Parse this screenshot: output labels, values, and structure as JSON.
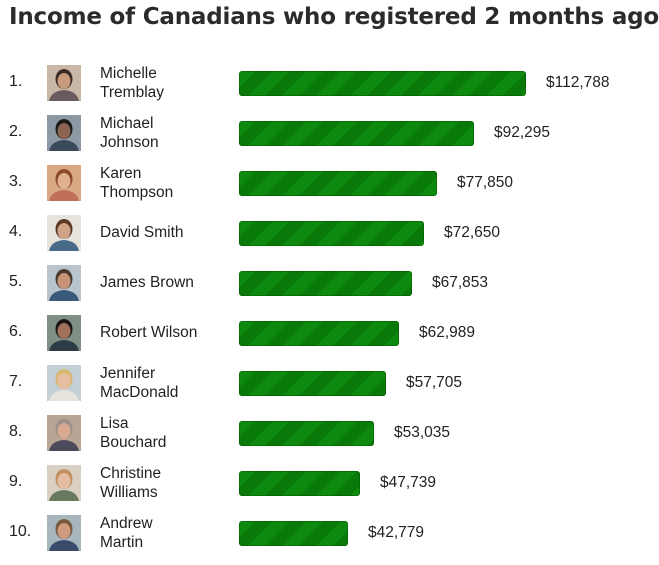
{
  "chart_data": {
    "type": "bar",
    "orientation": "horizontal",
    "title": "Income of Canadians who registered 2 months ago",
    "categories": [
      "Michelle Tremblay",
      "Michael Johnson",
      "Karen Thompson",
      "David Smith",
      "James Brown",
      "Robert Wilson",
      "Jennifer MacDonald",
      "Lisa Bouchard",
      "Christine Williams",
      "Andrew Martin"
    ],
    "values": [
      112788,
      92295,
      77850,
      72650,
      67853,
      62989,
      57705,
      53035,
      47739,
      42779
    ],
    "color": "#0d8a0d",
    "grid": false,
    "rows": [
      {
        "rank": "1.",
        "name_line1": "Michelle",
        "name_line2": "Tremblay",
        "value_label": "$112,788",
        "avatar_icon": "person-photo-icon"
      },
      {
        "rank": "2.",
        "name_line1": "Michael",
        "name_line2": "Johnson",
        "value_label": "$92,295",
        "avatar_icon": "person-photo-icon"
      },
      {
        "rank": "3.",
        "name_line1": "Karen",
        "name_line2": "Thompson",
        "value_label": "$77,850",
        "avatar_icon": "person-photo-icon"
      },
      {
        "rank": "4.",
        "name_line1": "David Smith",
        "name_line2": "",
        "value_label": "$72,650",
        "avatar_icon": "person-photo-icon"
      },
      {
        "rank": "5.",
        "name_line1": "James Brown",
        "name_line2": "",
        "value_label": "$67,853",
        "avatar_icon": "person-photo-icon"
      },
      {
        "rank": "6.",
        "name_line1": "Robert Wilson",
        "name_line2": "",
        "value_label": "$62,989",
        "avatar_icon": "person-photo-icon"
      },
      {
        "rank": "7.",
        "name_line1": "Jennifer",
        "name_line2": "MacDonald",
        "value_label": "$57,705",
        "avatar_icon": "person-photo-icon"
      },
      {
        "rank": "8.",
        "name_line1": "Lisa",
        "name_line2": "Bouchard",
        "value_label": "$53,035",
        "avatar_icon": "person-photo-icon"
      },
      {
        "rank": "9.",
        "name_line1": "Christine",
        "name_line2": "Williams",
        "value_label": "$47,739",
        "avatar_icon": "person-photo-icon"
      },
      {
        "rank": "10.",
        "name_line1": "Andrew",
        "name_line2": "Martin",
        "value_label": "$42,779",
        "avatar_icon": "person-photo-icon"
      }
    ]
  }
}
